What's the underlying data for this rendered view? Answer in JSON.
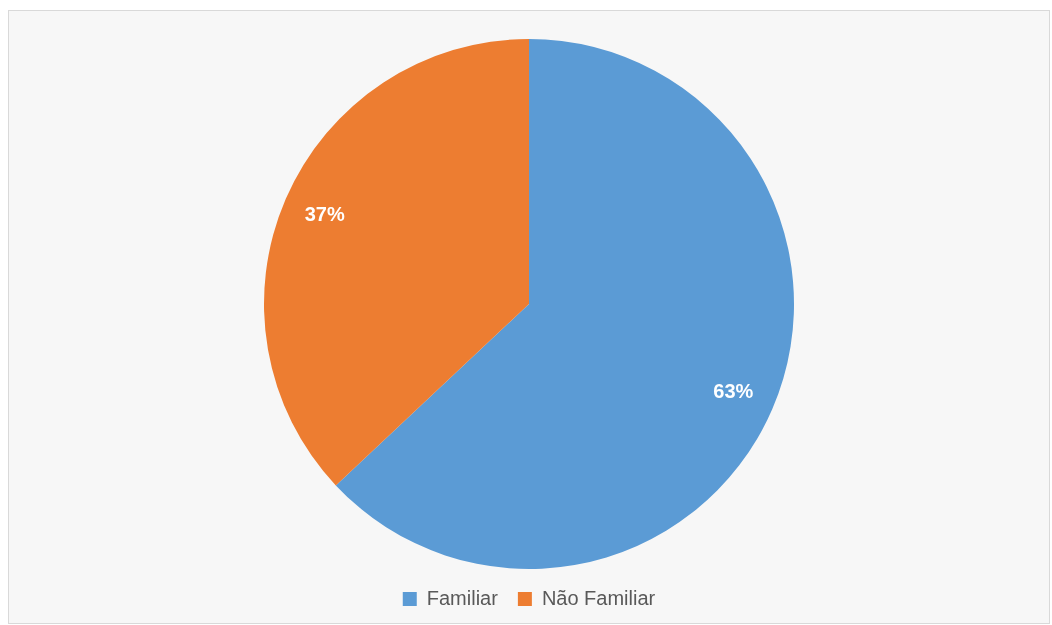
{
  "chart_data": {
    "type": "pie",
    "categories": [
      "Familiar",
      "Não Familiar"
    ],
    "values": [
      63,
      37
    ],
    "colors": [
      "#5b9bd5",
      "#ed7d31"
    ],
    "value_labels": [
      "63%",
      "37%"
    ],
    "legend": "bottom"
  }
}
